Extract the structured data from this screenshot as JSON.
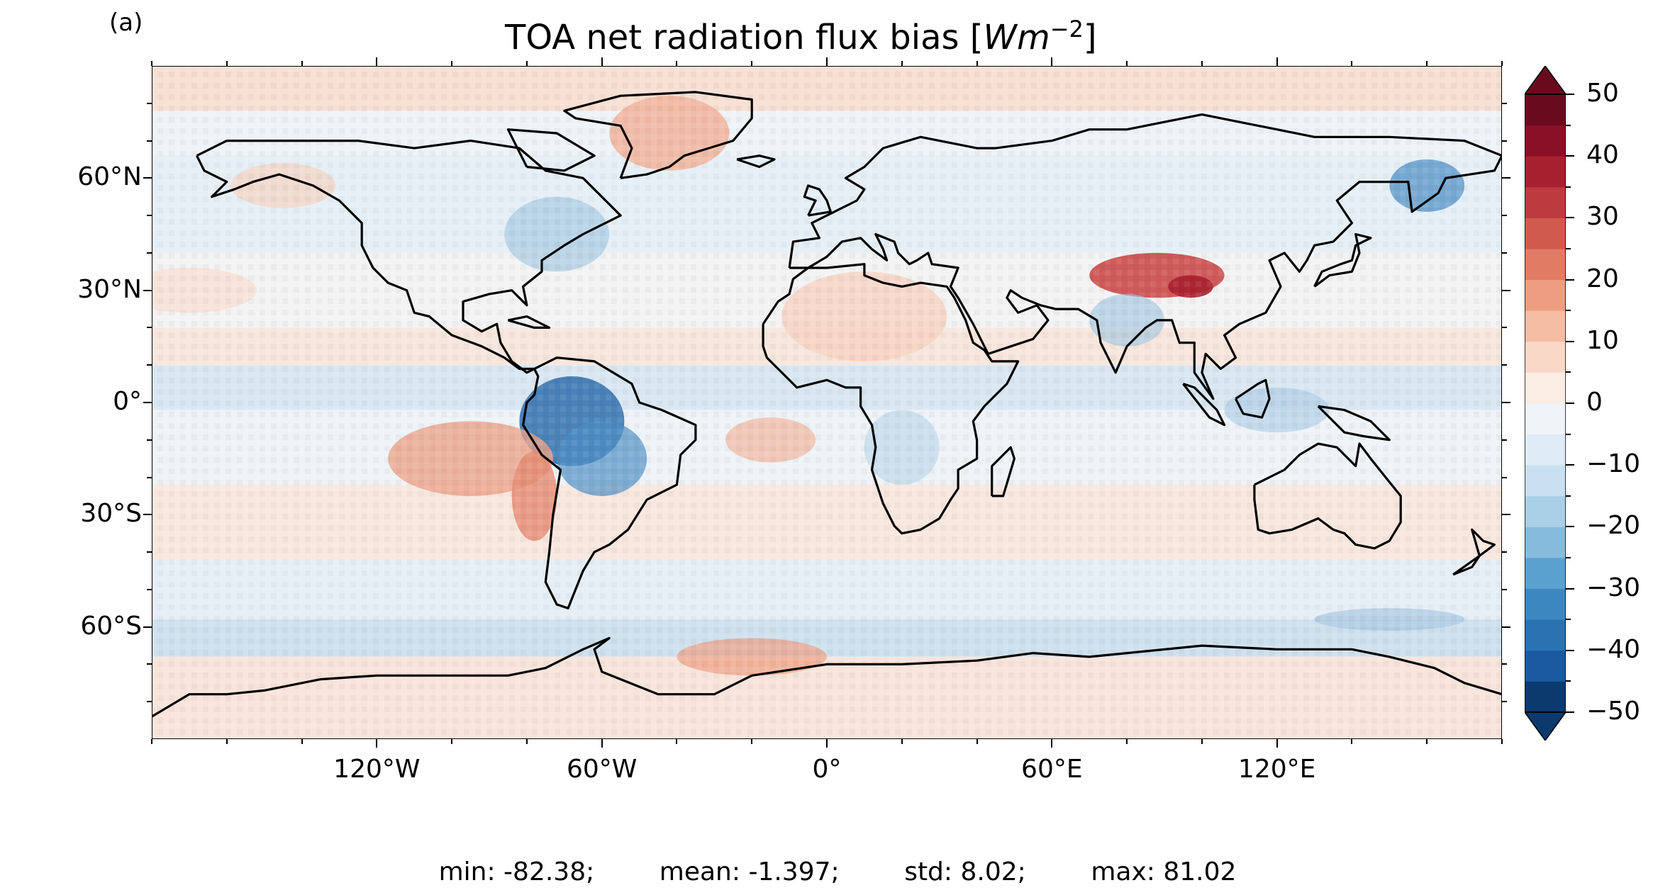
{
  "panel_label": "(a)",
  "title": {
    "prefix": "TOA net radiation flux bias [",
    "unit_base": "Wm",
    "unit_exp": "−2",
    "suffix": "]"
  },
  "lat_labels": [
    "60°N",
    "30°N",
    "0°",
    "30°S",
    "60°S"
  ],
  "lon_labels": [
    "120°W",
    "60°W",
    "0°",
    "60°E",
    "120°E"
  ],
  "colorbar": {
    "tick_labels": [
      "50",
      "40",
      "30",
      "20",
      "10",
      "0",
      "−10",
      "−20",
      "−30",
      "−40",
      "−50"
    ],
    "range": [
      -50,
      50
    ],
    "step": 5,
    "extend": "both",
    "cmap": "RdBu_r",
    "colors": [
      "#0b3a6e",
      "#1a5aa0",
      "#2b72b3",
      "#3b88c0",
      "#5ba1cf",
      "#86bbdc",
      "#a9d0e6",
      "#c8e0ef",
      "#dfecf5",
      "#f0f4f8",
      "#fbece4",
      "#f9d8c7",
      "#f5bda3",
      "#ee9e80",
      "#e27b63",
      "#d05a4d",
      "#bd3a3e",
      "#a7202f",
      "#8a1027",
      "#6a0a1f"
    ]
  },
  "stats": {
    "min": "min: -82.38;",
    "mean": "mean: -1.397;",
    "std": "std: 8.02;",
    "max": "max: 81.02"
  },
  "chart_data": {
    "type": "heatmap",
    "title": "TOA net radiation flux bias [Wm−2]",
    "projection": "PlateCarree",
    "xlim": [
      -180,
      180
    ],
    "ylim": [
      -90,
      90
    ],
    "xticks": [
      -120,
      -60,
      0,
      60,
      120
    ],
    "yticks": [
      60,
      30,
      0,
      -30,
      -60
    ],
    "clim": [
      -50,
      50
    ],
    "coastlines": true
  }
}
